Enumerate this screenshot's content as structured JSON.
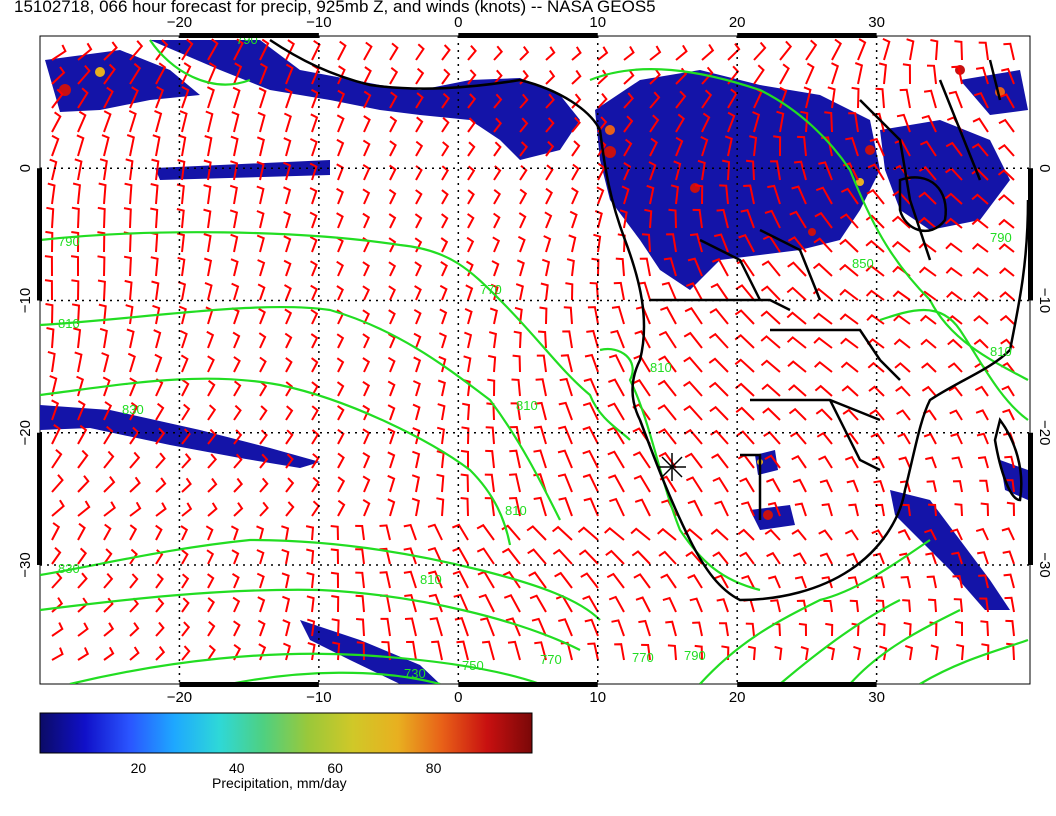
{
  "title": "15102718, 066 hour forecast for precip, 925mb Z, and winds (knots) -- NASA GEOS5",
  "map": {
    "lon_range": [
      -30,
      41
    ],
    "lat_range": [
      -39,
      10
    ],
    "grid_lons": [
      -20,
      -10,
      0,
      10,
      20,
      30
    ],
    "grid_lats": [
      0,
      -10,
      -20,
      -30
    ],
    "lon_tick_labels": [
      "−20",
      "−10",
      "0",
      "10",
      "20",
      "30"
    ],
    "lat_tick_labels": [
      "0",
      "−10",
      "−20",
      "−30"
    ],
    "contour_labels": [
      "790",
      "790",
      "810",
      "830",
      "830",
      "810",
      "810",
      "810",
      "810",
      "850",
      "810",
      "790",
      "770",
      "770",
      "730",
      "750",
      "770",
      "790"
    ],
    "colors": {
      "contour": "#22dd22",
      "wind_barb": "#ff0000",
      "coastline": "#000000",
      "grid": "#000000"
    }
  },
  "colorbar": {
    "label": "Precipitation, mm/day",
    "tick_labels": [
      "20",
      "40",
      "60",
      "80"
    ],
    "tick_values": [
      20,
      40,
      60,
      80
    ],
    "range": [
      0,
      100
    ],
    "gradient": [
      "#0b0b66",
      "#1010c8",
      "#2a55ff",
      "#1ea8ff",
      "#2ed8d8",
      "#4fd080",
      "#9ac83a",
      "#d0c828",
      "#e8b020",
      "#e86018",
      "#c81010",
      "#7a0808"
    ]
  }
}
